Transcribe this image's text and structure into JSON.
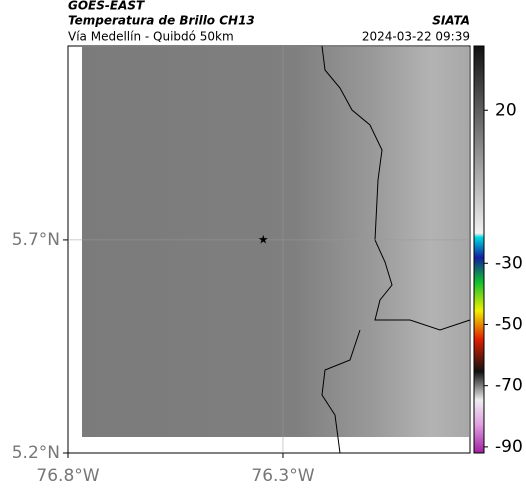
{
  "header": {
    "title": "GOES-EAST",
    "subtitle": "Temperatura de Brillo CH13",
    "source": "SIATA",
    "route": "Vía Medellín - Quibdó 50km",
    "timestamp": "2024-03-22 09:39"
  },
  "map": {
    "xlim": [
      -76.8,
      -75.865
    ],
    "ylim": [
      5.2,
      6.155
    ],
    "xticks": [
      {
        "value": -76.8,
        "label": "76.8°W"
      },
      {
        "value": -76.3,
        "label": "76.3°W"
      }
    ],
    "yticks": [
      {
        "value": 5.2,
        "label": "5.2°N"
      },
      {
        "value": 5.7,
        "label": "5.7°N"
      }
    ],
    "marker": {
      "lon": -76.346,
      "lat": 5.7
    }
  },
  "colorbar": {
    "lim": [
      -92,
      41
    ],
    "ticks": [
      20,
      -30,
      -50,
      -70,
      -90
    ]
  }
}
